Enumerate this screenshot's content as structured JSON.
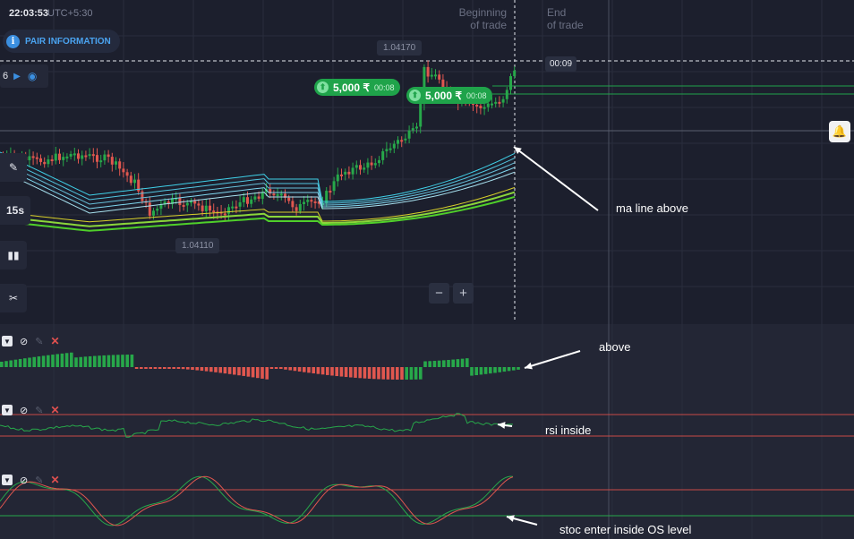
{
  "header": {
    "time": "22:03:53",
    "timezone": "UTC+5:30",
    "pair_info_label": "PAIR INFORMATION",
    "info_icon": "info-icon"
  },
  "toolbar": {
    "timeframe_value": "6",
    "play_icon": "play-icon",
    "eye_icon": "eye-icon",
    "draw_icon": "pencil-icon",
    "interval_label": "15s",
    "chart_type_icon": "candles-icon",
    "indicators_icon": "tools-icon"
  },
  "chart": {
    "beginning_label_1": "Beginning",
    "beginning_label_2": "of trade",
    "end_label_1": "End",
    "end_label_2": "of trade",
    "high_price": "1.04170",
    "low_price": "1.04110",
    "countdown": "00:09",
    "zoom_out": "−",
    "zoom_in": "+",
    "alert_icon": "bell-icon"
  },
  "trades": [
    {
      "amount": "5,000 ₹",
      "timer": "00:08"
    },
    {
      "amount": "5,000 ₹",
      "timer": "00:08"
    }
  ],
  "indicators": [
    {
      "name": "macd"
    },
    {
      "name": "rsi"
    },
    {
      "name": "stochastic"
    }
  ],
  "annotations": {
    "ma": "ma line above",
    "macd": "above",
    "rsi": "rsi inside",
    "stoch": "stoc enter inside OS level"
  },
  "colors": {
    "background": "#1c1f2d",
    "panel": "#232635",
    "bull": "#27a84a",
    "bear": "#e0574f",
    "accent": "#3b8fe0",
    "trade": "#1fa34a"
  }
}
